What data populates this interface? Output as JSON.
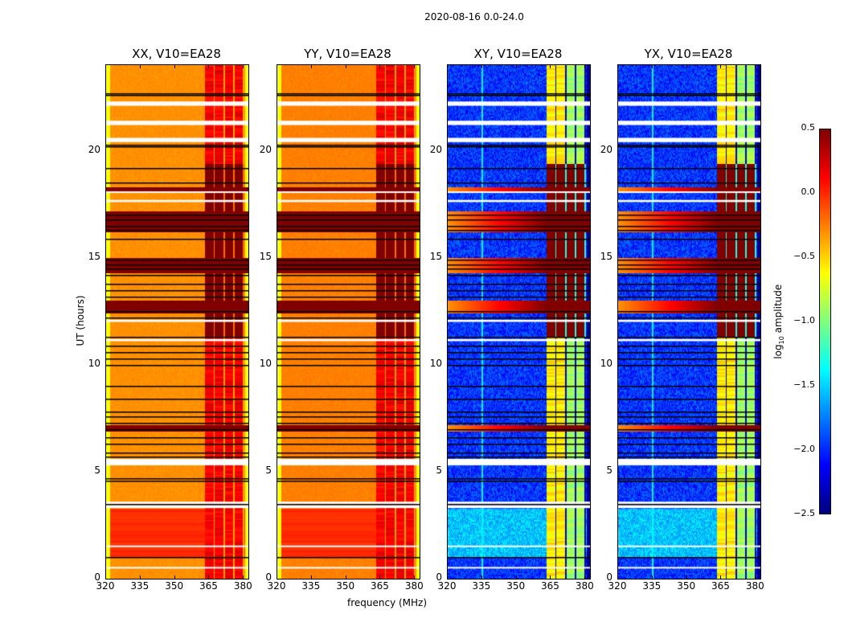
{
  "chart_data": {
    "type": "heatmap",
    "title": "2020-08-16 0.0-24.0",
    "xlabel": "frequency (MHz)",
    "ylabel": "UT (hours)",
    "xlim": [
      320,
      382
    ],
    "ylim": [
      0,
      24
    ],
    "xticks": [
      320,
      335,
      350,
      365,
      380
    ],
    "yticks": [
      0,
      5,
      10,
      15,
      20
    ],
    "colormap": "jet",
    "colorbar": {
      "label_main": "log",
      "label_sub": "10",
      "label_rest": " amplitude",
      "range": [
        -2.5,
        0.5
      ],
      "ticks": [
        "0.5",
        "0.0",
        "−0.5",
        "−1.0",
        "−1.5",
        "−2.0",
        "−2.5"
      ],
      "tick_values": [
        0.5,
        0.0,
        -0.5,
        -1.0,
        -1.5,
        -2.0,
        -2.5
      ]
    },
    "panels": [
      {
        "name": "XX",
        "title": "XX, V10=EA28",
        "kind": "parallel",
        "base_level": -0.3
      },
      {
        "name": "YY",
        "title": "YY, V10=EA28",
        "kind": "parallel",
        "base_level": -0.25
      },
      {
        "name": "XY",
        "title": "XY, V10=EA28",
        "kind": "cross",
        "base_level": -2.2
      },
      {
        "name": "YX",
        "title": "YX, V10=EA28",
        "kind": "cross",
        "base_level": -2.2
      }
    ],
    "rfi_band_mhz": [
      363,
      380
    ],
    "flag_lines_hours": [
      22.7,
      22.6,
      20.3,
      20.2,
      19.2,
      18.5,
      17.0,
      16.8,
      16.5,
      16.3,
      15.9,
      14.9,
      14.7,
      14.5,
      14.2,
      13.8,
      13.5,
      13.2,
      12.5,
      12.2,
      11.3,
      10.9,
      10.6,
      10.3,
      10.0,
      9.0,
      8.4,
      7.8,
      7.6,
      7.3,
      7.0,
      6.6,
      6.3,
      5.9,
      5.7,
      4.7,
      4.6,
      3.5,
      1.0
    ],
    "white_gaps_hours": [
      [
        22.1,
        22.3
      ],
      [
        21.2,
        21.4
      ],
      [
        20.4,
        20.6
      ],
      [
        18.05,
        18.1
      ],
      [
        17.6,
        17.7
      ],
      [
        12.0,
        12.1
      ],
      [
        11.1,
        11.2
      ],
      [
        5.3,
        5.6
      ],
      [
        3.5,
        3.6
      ],
      [
        3.3,
        3.45
      ],
      [
        1.5,
        1.55
      ],
      [
        0.5,
        0.55
      ]
    ],
    "strong_rows_hours": [
      [
        16.2,
        17.2
      ],
      [
        14.3,
        15.0
      ],
      [
        12.4,
        13.0
      ],
      [
        6.9,
        7.2
      ],
      [
        18.1,
        18.3
      ]
    ],
    "high_segment_hours": [
      [
        11.3,
        19.4
      ]
    ],
    "low_red_segment_hours": [
      [
        1.0,
        3.3
      ]
    ]
  }
}
